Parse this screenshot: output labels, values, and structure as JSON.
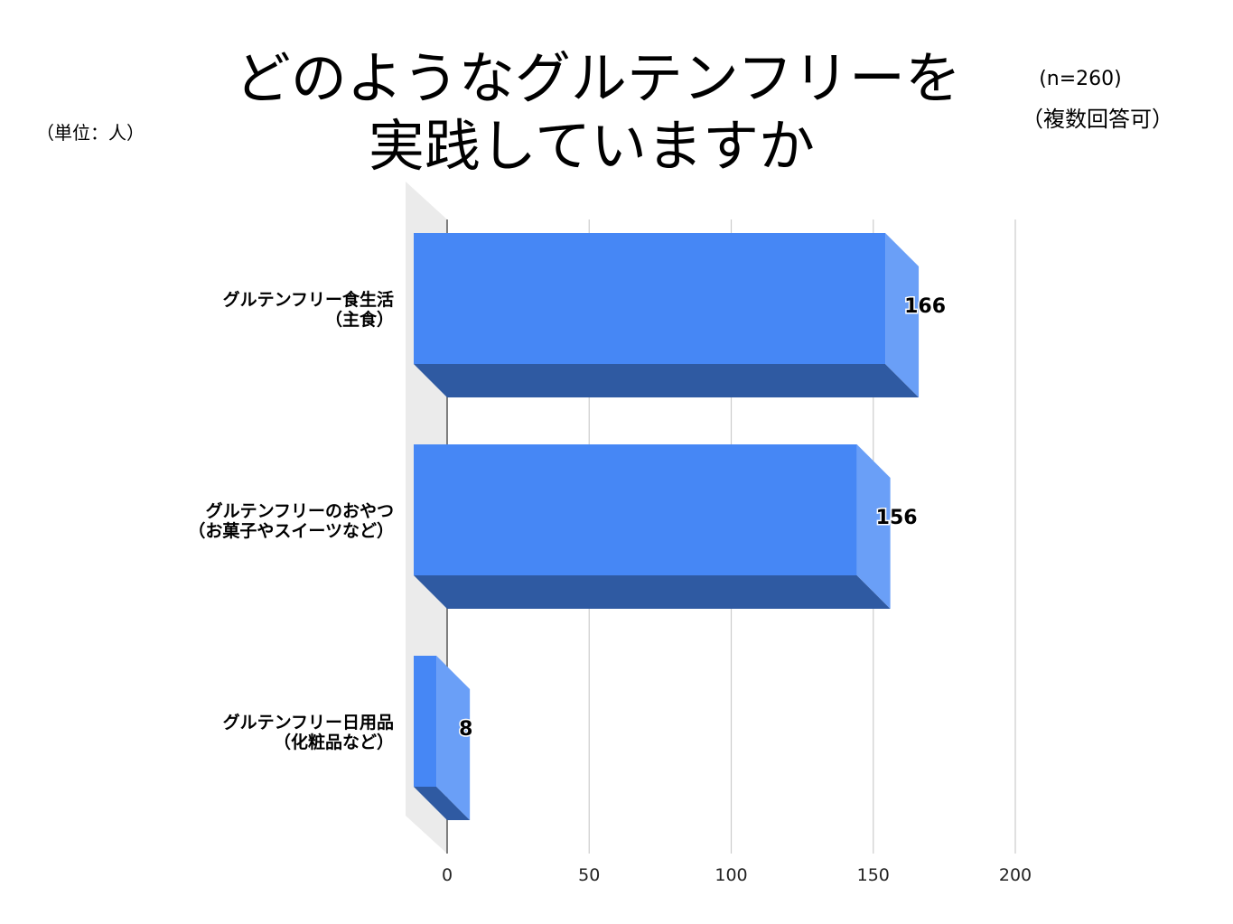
{
  "chart_data": {
    "type": "bar",
    "orientation": "horizontal",
    "style": "3d",
    "title_lines": [
      "どのようなグルテンフリーを",
      "実践していますか"
    ],
    "unit_note": "（単位：人）",
    "sample_note": "(n=260)",
    "multi_note": "（複数回答可）",
    "categories": [
      [
        "グルテンフリー食生活",
        "（主食）"
      ],
      [
        "グルテンフリーのおやつ",
        "（お菓子やスイーツなど）"
      ],
      [
        "グルテンフリー日用品",
        "（化粧品など）"
      ]
    ],
    "values": [
      166,
      156,
      8
    ],
    "xlim": [
      0,
      200
    ],
    "xticks": [
      0,
      50,
      100,
      150,
      200
    ],
    "grid": true,
    "colors": {
      "bar_front": "#4687f5",
      "bar_side": "#6a9ff7",
      "bar_bottom": "#2f5aa2",
      "grid": "#cccccc",
      "wall": "#ebebeb"
    }
  }
}
